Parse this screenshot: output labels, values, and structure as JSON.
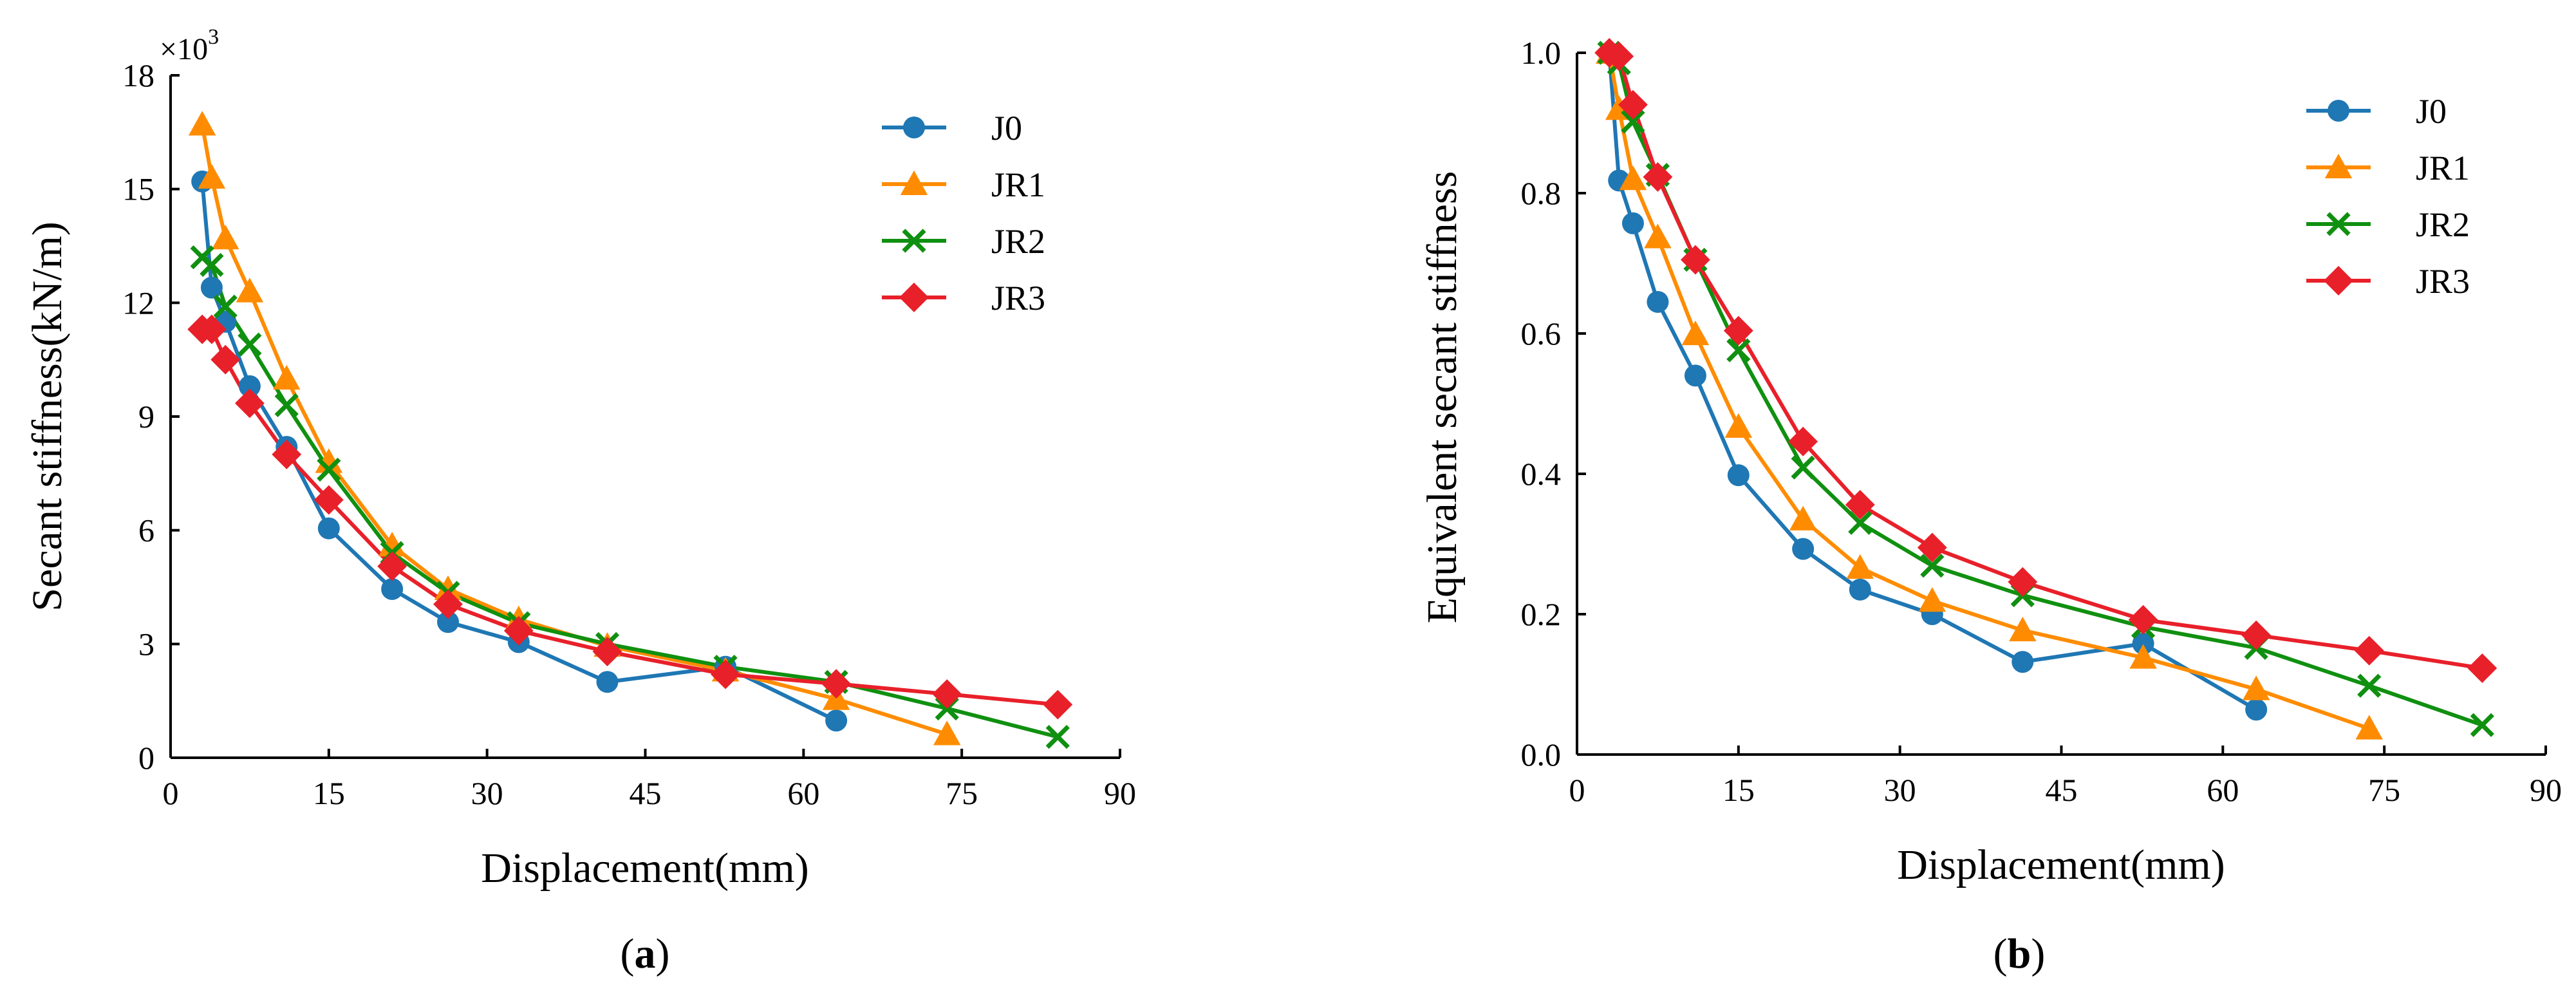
{
  "chart_data": [
    {
      "type": "line",
      "panel_label": "a",
      "xlabel": "Displacement(mm)",
      "ylabel": "Secant stiffness(kN/m)",
      "y_multiplier_label": "×10",
      "y_multiplier_exponent": "3",
      "xlim": [
        0,
        90
      ],
      "ylim": [
        0,
        18
      ],
      "xticks": [
        "0",
        "15",
        "30",
        "45",
        "60",
        "75",
        "90"
      ],
      "yticks": [
        "0",
        "3",
        "6",
        "9",
        "12",
        "15",
        "18"
      ],
      "grid": false,
      "legend_position": "top-right",
      "series": [
        {
          "name": "J0",
          "color": "#1f77b4",
          "marker": "circle",
          "x": [
            3.0,
            3.9,
            5.2,
            7.5,
            11.0,
            15.0,
            21.0,
            26.3,
            33.0,
            41.4,
            52.6,
            63.1
          ],
          "y": [
            15.2,
            12.4,
            11.5,
            9.8,
            8.2,
            6.05,
            4.45,
            3.58,
            3.05,
            2.0,
            2.4,
            0.98
          ]
        },
        {
          "name": "JR1",
          "color": "#ff8c00",
          "marker": "triangle",
          "x": [
            3.0,
            3.9,
            5.2,
            7.5,
            11.0,
            15.0,
            21.0,
            26.3,
            33.0,
            41.4,
            52.6,
            63.1,
            73.6
          ],
          "y": [
            16.7,
            15.3,
            13.7,
            12.3,
            10.0,
            7.8,
            5.6,
            4.45,
            3.65,
            2.95,
            2.3,
            1.55,
            0.62
          ]
        },
        {
          "name": "JR2",
          "color": "#109010",
          "marker": "x",
          "x": [
            3.0,
            3.9,
            5.2,
            7.5,
            11.0,
            15.0,
            21.0,
            26.3,
            33.0,
            41.4,
            52.6,
            63.1,
            73.6,
            84.1
          ],
          "y": [
            13.2,
            13.0,
            11.9,
            10.9,
            9.3,
            7.6,
            5.4,
            4.35,
            3.55,
            3.0,
            2.4,
            2.0,
            1.3,
            0.55
          ]
        },
        {
          "name": "JR3",
          "color": "#e8202a",
          "marker": "diamond",
          "x": [
            3.0,
            3.9,
            5.2,
            7.5,
            11.0,
            15.0,
            21.0,
            26.3,
            33.0,
            41.4,
            52.6,
            63.1,
            73.6,
            84.1
          ],
          "y": [
            11.3,
            11.3,
            10.5,
            9.35,
            8.0,
            6.8,
            5.05,
            4.05,
            3.35,
            2.8,
            2.2,
            1.95,
            1.68,
            1.4
          ]
        }
      ]
    },
    {
      "type": "line",
      "panel_label": "b",
      "xlabel": "Displacement(mm)",
      "ylabel": "Equivalent secant stiffness",
      "xlim": [
        0,
        90
      ],
      "ylim": [
        0,
        1.0
      ],
      "xticks": [
        "0",
        "15",
        "30",
        "45",
        "60",
        "75",
        "90"
      ],
      "yticks": [
        "0.0",
        "0.2",
        "0.4",
        "0.6",
        "0.8",
        "1.0"
      ],
      "grid": false,
      "legend_position": "top-right",
      "series": [
        {
          "name": "J0",
          "color": "#1f77b4",
          "marker": "circle",
          "x": [
            3.0,
            3.9,
            5.2,
            7.5,
            11.0,
            15.0,
            21.0,
            26.3,
            33.0,
            41.4,
            52.6,
            63.1
          ],
          "y": [
            1.0,
            0.818,
            0.757,
            0.645,
            0.54,
            0.398,
            0.293,
            0.235,
            0.2,
            0.132,
            0.158,
            0.064
          ]
        },
        {
          "name": "JR1",
          "color": "#ff8c00",
          "marker": "triangle",
          "x": [
            3.0,
            3.9,
            5.2,
            7.5,
            11.0,
            15.0,
            21.0,
            26.3,
            33.0,
            41.4,
            52.6,
            63.1,
            73.6
          ],
          "y": [
            1.0,
            0.92,
            0.82,
            0.737,
            0.599,
            0.467,
            0.335,
            0.266,
            0.219,
            0.177,
            0.138,
            0.093,
            0.037
          ]
        },
        {
          "name": "JR2",
          "color": "#109010",
          "marker": "x",
          "x": [
            3.0,
            3.9,
            5.2,
            7.5,
            11.0,
            15.0,
            21.0,
            26.3,
            33.0,
            41.4,
            52.6,
            63.1,
            73.6,
            84.1
          ],
          "y": [
            1.0,
            0.985,
            0.902,
            0.826,
            0.705,
            0.576,
            0.409,
            0.33,
            0.269,
            0.227,
            0.182,
            0.152,
            0.098,
            0.042
          ]
        },
        {
          "name": "JR3",
          "color": "#e8202a",
          "marker": "diamond",
          "x": [
            3.0,
            3.9,
            5.2,
            7.5,
            11.0,
            15.0,
            21.0,
            26.3,
            33.0,
            41.4,
            52.6,
            63.1,
            73.6,
            84.1
          ],
          "y": [
            1.0,
            0.995,
            0.926,
            0.823,
            0.705,
            0.604,
            0.446,
            0.356,
            0.295,
            0.246,
            0.192,
            0.17,
            0.148,
            0.123
          ]
        }
      ]
    }
  ]
}
